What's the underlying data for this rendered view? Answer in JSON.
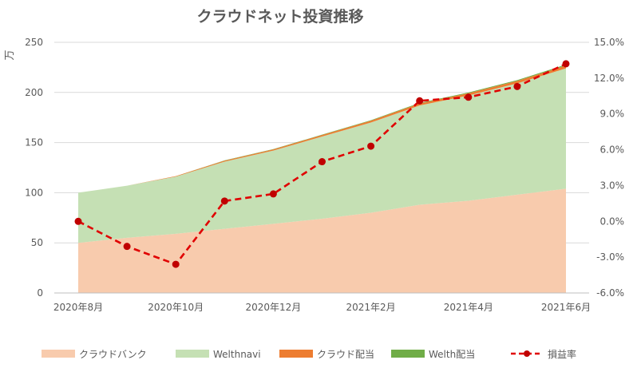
{
  "chart_data": {
    "type": "area",
    "title": "クラウドネット投資推移",
    "y_left_unit": "万",
    "ylim_left": [
      0,
      250
    ],
    "y_left_ticks": [
      "0",
      "50",
      "100",
      "150",
      "200",
      "250"
    ],
    "ylim_right": [
      -6.0,
      15.0
    ],
    "y_right_ticks": [
      "-6.0%",
      "-3.0%",
      "0.0%",
      "3.0%",
      "6.0%",
      "9.0%",
      "12.0%",
      "15.0%"
    ],
    "x_tick_labels": [
      "2020年8月",
      "2020年10月",
      "2020年12月",
      "2021年2月",
      "2021年4月",
      "2021年6月"
    ],
    "months": [
      "2020-08",
      "2020-09",
      "2020-10",
      "2020-11",
      "2020-12",
      "2021-01",
      "2021-02",
      "2021-03",
      "2021-04",
      "2021-05",
      "2021-06"
    ],
    "series": [
      {
        "name": "クラウドバンク",
        "kind": "area",
        "axis": "left",
        "color": "#f8cbad",
        "values": [
          50,
          55,
          59,
          64,
          69,
          74,
          80,
          88,
          92,
          98,
          104
        ]
      },
      {
        "name": "Welthnavi",
        "kind": "area",
        "axis": "left",
        "color": "#c5e0b4",
        "values": [
          50,
          52,
          57,
          67,
          73,
          82,
          90,
          99,
          105,
          111,
          120
        ]
      },
      {
        "name": "クラウド配当",
        "kind": "area",
        "axis": "left",
        "color": "#ed7d31",
        "values": [
          0,
          0,
          0.5,
          1,
          1.2,
          1.5,
          1.8,
          2,
          2.2,
          2.5,
          2.8
        ]
      },
      {
        "name": "Welth配当",
        "kind": "area",
        "axis": "left",
        "color": "#70ad47",
        "values": [
          0,
          0,
          0,
          0.3,
          0.3,
          0.4,
          0.5,
          0.6,
          0.7,
          0.8,
          1.0
        ]
      },
      {
        "name": "損益率",
        "kind": "line",
        "axis": "right",
        "color": "#e00000",
        "values": [
          0.0,
          -2.1,
          -3.6,
          1.7,
          2.3,
          5.0,
          6.3,
          10.1,
          10.4,
          11.3,
          13.2
        ]
      }
    ],
    "grid": true,
    "legend_position": "bottom"
  }
}
